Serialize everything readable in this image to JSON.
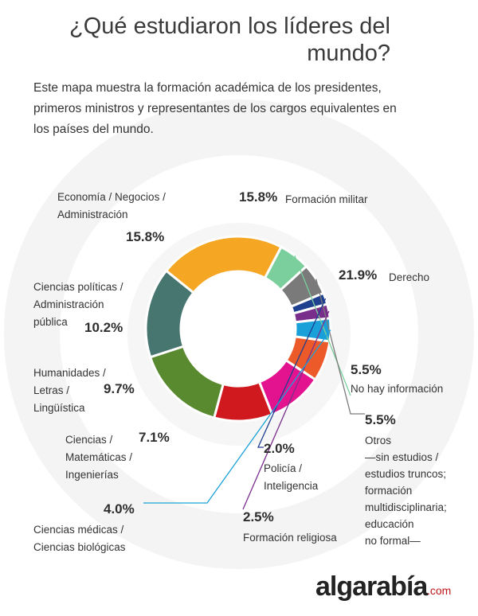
{
  "header": {
    "title": "¿Qué estudiaron los líderes del mundo?",
    "intro": "Este mapa muestra la formación académica de los presidentes, primeros ministros y representantes de los cargos equivalentes en los países del mundo."
  },
  "colors": {
    "militar": "#47756f",
    "derecho": "#f5a623",
    "no_info": "#7bcf9c",
    "otros": "#7a7a7a",
    "policia": "#1f3f8f",
    "religiosa": "#7a2e8c",
    "medicas": "#1aa0d8",
    "ciencias": "#ec5a2a",
    "humanidades": "#e3138f",
    "politicas": "#d0191f",
    "economia": "#5a8a2f"
  },
  "chart_data": {
    "type": "pie",
    "title": "¿Qué estudiaron los líderes del mundo?",
    "unit": "%",
    "slices": [
      {
        "key": "militar",
        "label": "Formación militar",
        "value": 15.8,
        "value_label": "15.8%"
      },
      {
        "key": "derecho",
        "label": "Derecho",
        "value": 21.9,
        "value_label": "21.9%"
      },
      {
        "key": "no_info",
        "label": "No hay información",
        "value": 5.5,
        "value_label": "5.5%"
      },
      {
        "key": "otros",
        "label": "Otros\n—sin estudios /\nestudios truncos;\nformación\nmultidisciplinaria;\neducación\nno formal—",
        "value": 5.5,
        "value_label": "5.5%"
      },
      {
        "key": "policia",
        "label": "Policía /\nInteligencia",
        "value": 2.0,
        "value_label": "2.0%"
      },
      {
        "key": "religiosa",
        "label": "Formación religiosa",
        "value": 2.5,
        "value_label": "2.5%"
      },
      {
        "key": "medicas",
        "label": "Ciencias médicas /\nCiencias biológicas",
        "value": 4.0,
        "value_label": "4.0%"
      },
      {
        "key": "ciencias",
        "label": "Ciencias /\nMatemáticas /\nIngenierías",
        "value": 7.1,
        "value_label": "7.1%"
      },
      {
        "key": "humanidades",
        "label": "Humanidades /\nLetras /\nLingüística",
        "value": 9.7,
        "value_label": "9.7%"
      },
      {
        "key": "politicas",
        "label": "Ciencias políticas /\nAdministración\npública",
        "value": 10.2,
        "value_label": "10.2%"
      },
      {
        "key": "economia",
        "label": "Economía / Negocios /\nAdministración",
        "value": 15.8,
        "value_label": "15.8%"
      }
    ]
  },
  "footer": {
    "logo_text": "algarabía",
    "logo_tld": ".com"
  }
}
